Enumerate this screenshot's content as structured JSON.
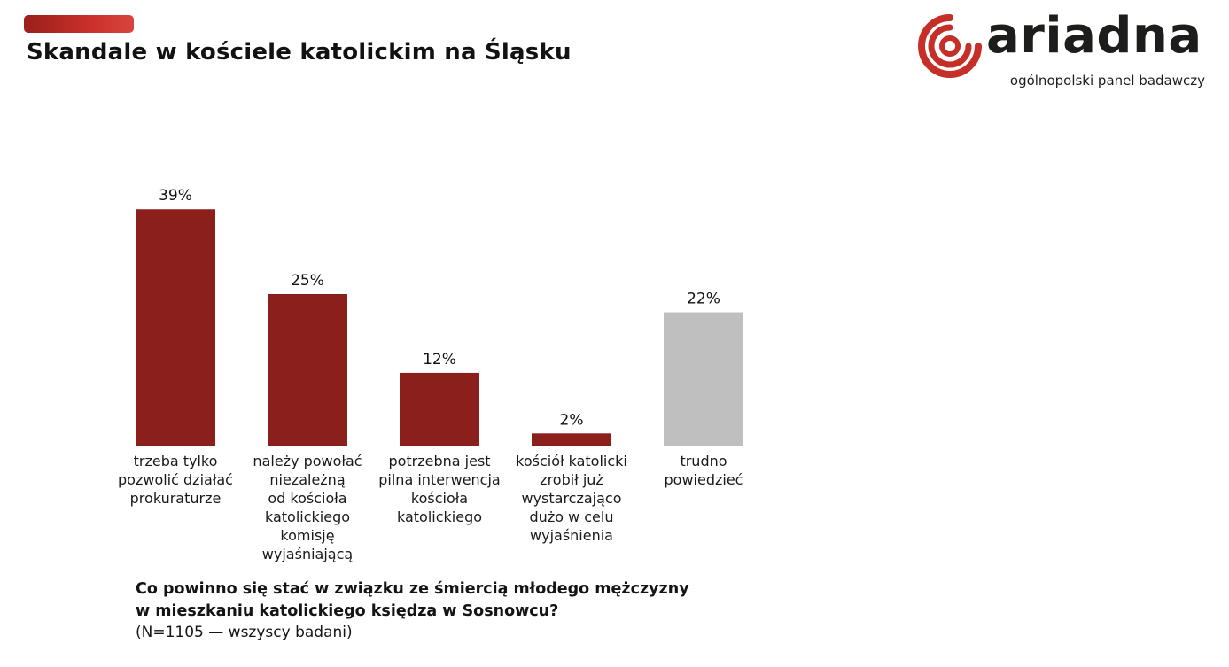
{
  "page": {
    "title": "Skandale w kościele katolickim na Śląsku",
    "accent_color": "#c0322b"
  },
  "logo": {
    "wordmark": "ariadna",
    "tagline": "ogólnopolski panel badawczy",
    "icon": "ariadna-spiral-logo-icon",
    "color": "#c62f28"
  },
  "chart_data": {
    "type": "bar",
    "categories": [
      "trzeba tylko pozwolić działać prokuraturze",
      "należy powołać niezależną od kościoła katolickiego komisję wyjaśniającą",
      "potrzebna jest pilna interwencja kościoła katolickiego",
      "kościół katolicki zrobił już wystarczająco dużo w celu wyjaśnienia",
      "trudno powiedzieć"
    ],
    "category_lines": [
      [
        "trzeba tylko",
        "pozwolić działać",
        "prokuraturze"
      ],
      [
        "należy powołać",
        "niezależną",
        "od kościoła",
        "katolickiego",
        "komisję",
        "wyjaśniającą"
      ],
      [
        "potrzebna jest",
        "pilna interwencja",
        "kościoła",
        "katolickiego"
      ],
      [
        "kościół katolicki",
        "zrobił już",
        "wystarczająco",
        "dużo w celu",
        "wyjaśnienia"
      ],
      [
        "trudno",
        "powiedzieć"
      ]
    ],
    "values": [
      39,
      25,
      12,
      2,
      22
    ],
    "value_labels": [
      "39%",
      "25%",
      "12%",
      "2%",
      "22%"
    ],
    "unit": "%",
    "colors": [
      "#8b1f1c",
      "#8b1f1c",
      "#8b1f1c",
      "#8b1f1c",
      "#bfbfbf"
    ],
    "ylim": [
      0,
      40
    ],
    "grid": false,
    "legend": "none",
    "xlabel": "",
    "ylabel": ""
  },
  "question": {
    "line1": "Co powinno się stać w związku ze śmiercią młodego mężczyzny",
    "line2": "w mieszkaniu katolickiego księdza w Sosnowcu?",
    "base": "(N=1105 — wszyscy badani)"
  }
}
